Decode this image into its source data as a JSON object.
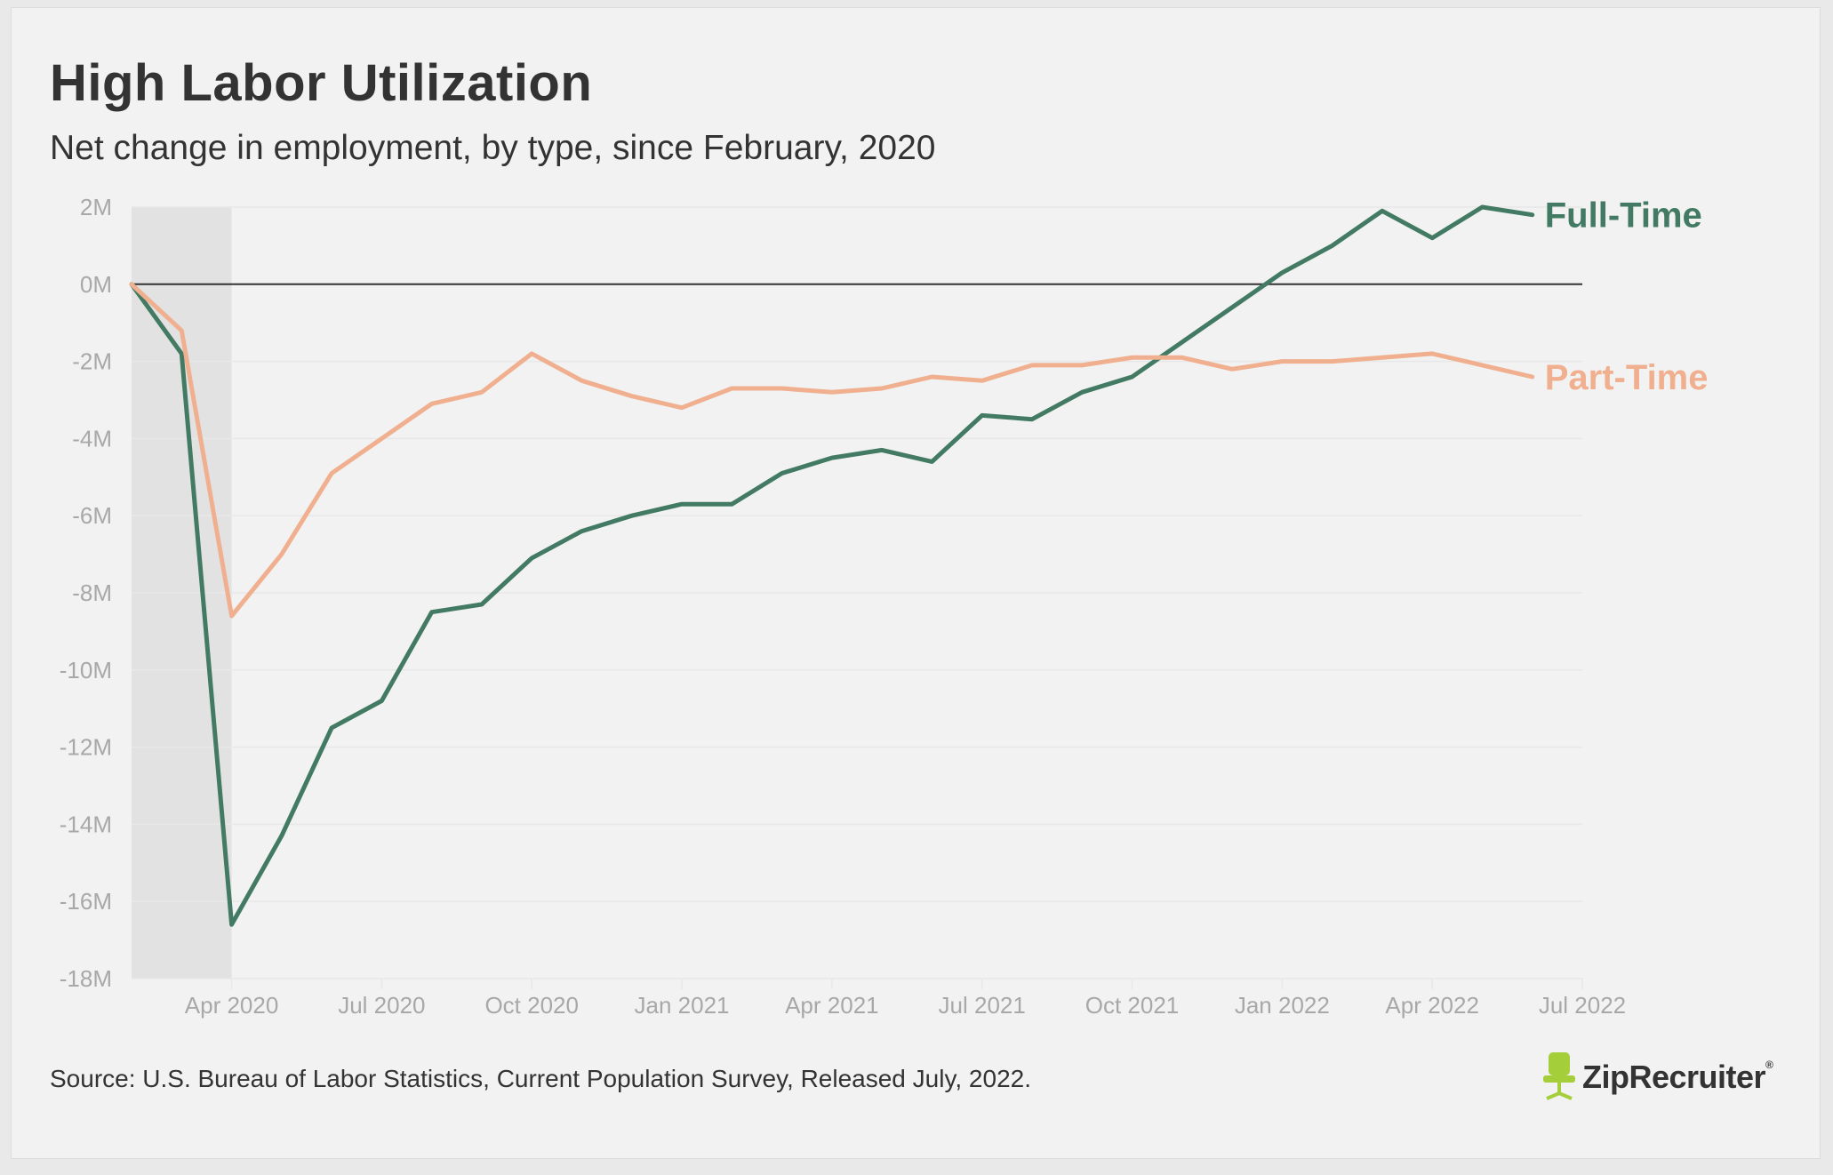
{
  "header": {
    "title": "High Labor Utilization",
    "subtitle": "Net change in employment, by type, since February, 2020"
  },
  "footer": {
    "source": "Source: U.S. Bureau of Labor Statistics, Current Population Survey, Released July, 2022.",
    "logo_text": "ZipRecruiter",
    "logo_mark": "®",
    "logo_icon": "chair-icon"
  },
  "colors": {
    "full_time": "#427a63",
    "part_time": "#f0b08f",
    "shade": "#e2e2e2",
    "zero_line": "#333333",
    "grid": "#e8e8e8",
    "logo_green": "#a5cf3a"
  },
  "chart_data": {
    "type": "line",
    "title": "High Labor Utilization",
    "subtitle": "Net change in employment, by type, since February, 2020",
    "x": [
      "2020-02",
      "2020-03",
      "2020-04",
      "2020-05",
      "2020-06",
      "2020-07",
      "2020-08",
      "2020-09",
      "2020-10",
      "2020-11",
      "2020-12",
      "2021-01",
      "2021-02",
      "2021-03",
      "2021-04",
      "2021-05",
      "2021-06",
      "2021-07",
      "2021-08",
      "2021-09",
      "2021-10",
      "2021-11",
      "2021-12",
      "2022-01",
      "2022-02",
      "2022-03",
      "2022-04",
      "2022-05",
      "2022-06"
    ],
    "x_ticks": [
      {
        "date": "2020-04",
        "label": "Apr 2020"
      },
      {
        "date": "2020-07",
        "label": "Jul 2020"
      },
      {
        "date": "2020-10",
        "label": "Oct 2020"
      },
      {
        "date": "2021-01",
        "label": "Jan 2021"
      },
      {
        "date": "2021-04",
        "label": "Apr 2021"
      },
      {
        "date": "2021-07",
        "label": "Jul 2021"
      },
      {
        "date": "2021-10",
        "label": "Oct 2021"
      },
      {
        "date": "2022-01",
        "label": "Jan 2022"
      },
      {
        "date": "2022-04",
        "label": "Apr 2022"
      },
      {
        "date": "2022-07",
        "label": "Jul 2022"
      }
    ],
    "xlim": [
      "2020-02",
      "2022-07"
    ],
    "ylim": [
      -18,
      2
    ],
    "y_ticks": [
      {
        "value": 2,
        "label": "2M"
      },
      {
        "value": 0,
        "label": "0M"
      },
      {
        "value": -2,
        "label": "-2M"
      },
      {
        "value": -4,
        "label": "-4M"
      },
      {
        "value": -6,
        "label": "-6M"
      },
      {
        "value": -8,
        "label": "-8M"
      },
      {
        "value": -10,
        "label": "-10M"
      },
      {
        "value": -12,
        "label": "-12M"
      },
      {
        "value": -14,
        "label": "-14M"
      },
      {
        "value": -16,
        "label": "-16M"
      },
      {
        "value": -18,
        "label": "-18M"
      }
    ],
    "shaded_region": [
      "2020-02",
      "2020-04"
    ],
    "grid": true,
    "series": [
      {
        "name": "Full-Time",
        "color": "#427a63",
        "values": [
          0,
          -1.8,
          -16.6,
          -14.3,
          -11.5,
          -10.8,
          -8.5,
          -8.3,
          -7.1,
          -6.4,
          -6.0,
          -5.7,
          -5.7,
          -4.9,
          -4.5,
          -4.3,
          -4.6,
          -3.4,
          -3.5,
          -2.8,
          -2.4,
          -1.5,
          -0.6,
          0.3,
          1.0,
          1.9,
          1.2,
          2.0,
          1.8
        ]
      },
      {
        "name": "Part-Time",
        "color": "#f0b08f",
        "values": [
          0,
          -1.2,
          -8.6,
          -7.0,
          -4.9,
          -4.0,
          -3.1,
          -2.8,
          -1.8,
          -2.5,
          -2.9,
          -3.2,
          -2.7,
          -2.7,
          -2.8,
          -2.7,
          -2.4,
          -2.5,
          -2.1,
          -2.1,
          -1.9,
          -1.9,
          -2.2,
          -2.0,
          -2.0,
          -1.9,
          -1.8,
          -2.1,
          -2.4
        ]
      }
    ]
  }
}
